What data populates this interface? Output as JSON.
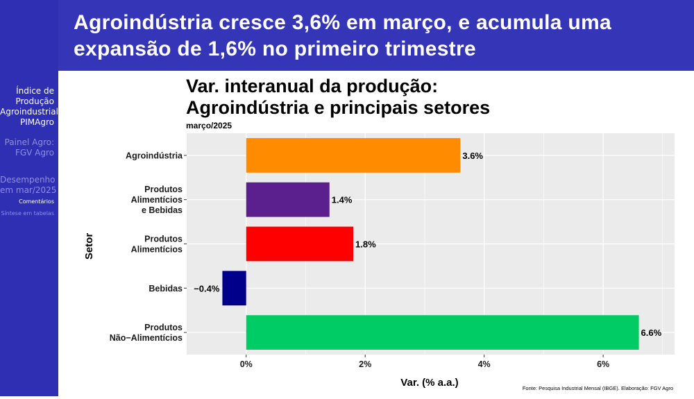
{
  "slide": {
    "title_lines": [
      "Agroindústria cresce 3,6% em março, e acumula uma",
      "expansão de 1,6% no primeiro trimestre"
    ]
  },
  "sidebar": {
    "main_lines": [
      "Índice de",
      "Produção",
      "Agroindustrial",
      "PIMAgro"
    ],
    "sections": [
      {
        "lines": [
          "Painel Agro:",
          "FGV Agro"
        ]
      },
      {
        "lines": [
          "Desempenho",
          "em mar/2025"
        ]
      }
    ],
    "subitems": [
      {
        "label": "Comentários",
        "active": true
      },
      {
        "label": "Síntese em tabelas",
        "active": false
      }
    ]
  },
  "chart_data": {
    "type": "bar",
    "orientation": "horizontal",
    "title_lines": [
      "Var. interanual da produção:",
      "Agroindústria e principais setores"
    ],
    "subtitle": "março/2025",
    "ylabel": "Setor",
    "xlabel": "Var. (% a.a.)",
    "source": "Fonte: Pesquisa Industrial Mensal (IBGE). Elaboração: FGV Agro",
    "categories": [
      [
        "Agroindústria"
      ],
      [
        "Produtos",
        "Alimentícios",
        "e Bebidas"
      ],
      [
        "Produtos",
        "Alimentícios"
      ],
      [
        "Bebidas"
      ],
      [
        "Produtos",
        "Não−Alimentícios"
      ]
    ],
    "values": [
      3.6,
      1.4,
      1.8,
      -0.4,
      6.6
    ],
    "value_labels": [
      "3.6%",
      "1.4%",
      "1.8%",
      "−0.4%",
      "6.6%"
    ],
    "colors": [
      "#ff8c00",
      "#5b1f8e",
      "#ff0000",
      "#00008b",
      "#00cc66"
    ],
    "xlim": [
      -1.0,
      7.2
    ],
    "xticks": [
      0,
      2,
      4,
      6
    ],
    "xtick_labels": [
      "0%",
      "2%",
      "4%",
      "6%"
    ],
    "grid": true,
    "legend": "none",
    "panel_color": "#ebebeb"
  }
}
